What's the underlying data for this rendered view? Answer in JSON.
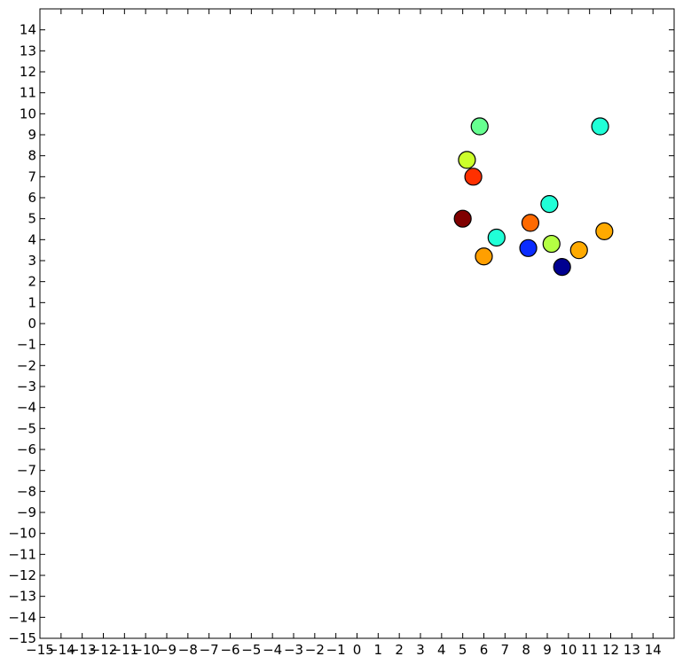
{
  "chart_data": {
    "type": "scatter",
    "title": "",
    "xlabel": "",
    "ylabel": "",
    "xlim": [
      -15,
      15
    ],
    "ylim": [
      -15,
      15
    ],
    "grid": false,
    "xticks": [
      -15,
      -14,
      -13,
      -12,
      -11,
      -10,
      -9,
      -8,
      -7,
      -6,
      -5,
      -4,
      -3,
      -2,
      -1,
      0,
      1,
      2,
      3,
      4,
      5,
      6,
      7,
      8,
      9,
      10,
      11,
      12,
      13,
      14
    ],
    "yticks": [
      -15,
      -14,
      -13,
      -12,
      -11,
      -10,
      -9,
      -8,
      -7,
      -6,
      -5,
      -4,
      -3,
      -2,
      -1,
      0,
      1,
      2,
      3,
      4,
      5,
      6,
      7,
      8,
      9,
      10,
      11,
      12,
      13,
      14
    ],
    "points": [
      {
        "x": 5.8,
        "y": 9.4,
        "color": "#66ff90"
      },
      {
        "x": 11.5,
        "y": 9.4,
        "color": "#20ffd7"
      },
      {
        "x": 5.2,
        "y": 7.8,
        "color": "#ccff2a"
      },
      {
        "x": 5.5,
        "y": 7.0,
        "color": "#ff3000"
      },
      {
        "x": 9.1,
        "y": 5.7,
        "color": "#20ffd7"
      },
      {
        "x": 5.0,
        "y": 5.0,
        "color": "#800000"
      },
      {
        "x": 8.2,
        "y": 4.8,
        "color": "#ff6a00"
      },
      {
        "x": 11.7,
        "y": 4.4,
        "color": "#ffaa00"
      },
      {
        "x": 6.6,
        "y": 4.1,
        "color": "#20ffd7"
      },
      {
        "x": 9.2,
        "y": 3.8,
        "color": "#b4ff43"
      },
      {
        "x": 8.1,
        "y": 3.6,
        "color": "#0a2cff"
      },
      {
        "x": 10.5,
        "y": 3.5,
        "color": "#ffaa00"
      },
      {
        "x": 6.0,
        "y": 3.2,
        "color": "#ff9f00"
      },
      {
        "x": 9.7,
        "y": 2.7,
        "color": "#000090"
      }
    ]
  }
}
